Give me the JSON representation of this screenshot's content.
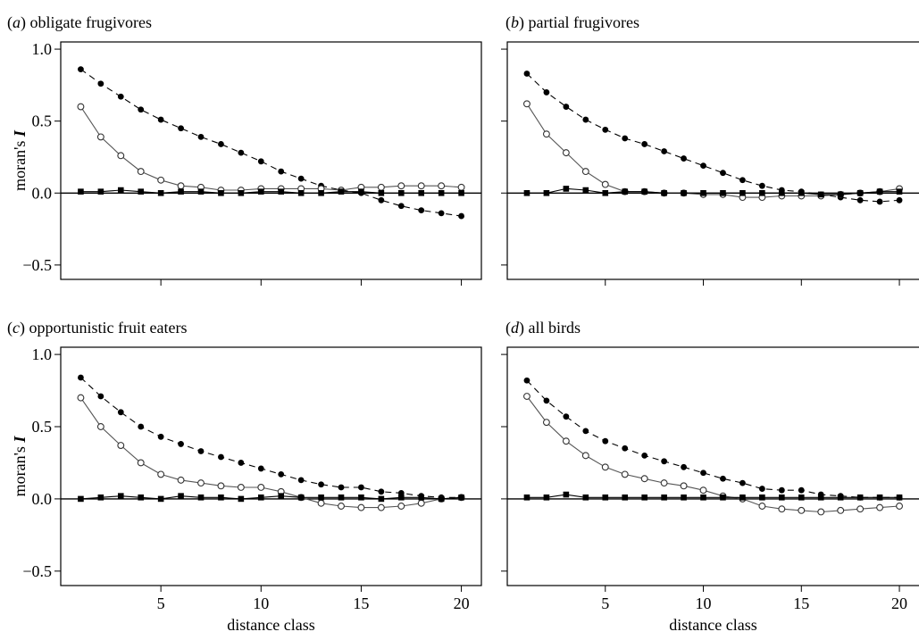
{
  "chart_data": [
    {
      "type": "line",
      "panel_letter": "a",
      "title": "obligate frugivores",
      "xlabel": "",
      "ylabel": "moran's I",
      "xlim": [
        0,
        21
      ],
      "ylim": [
        -0.6,
        1.05
      ],
      "xticks": [
        5,
        10,
        15,
        20
      ],
      "yticks": [
        -0.5,
        0.0,
        0.5,
        1.0
      ],
      "show_x_tick_labels": false,
      "show_y_tick_labels": true,
      "x": [
        1,
        2,
        3,
        4,
        5,
        6,
        7,
        8,
        9,
        10,
        11,
        12,
        13,
        14,
        15,
        16,
        17,
        18,
        19,
        20
      ],
      "series": [
        {
          "style": "dashed-filled-circle",
          "values": [
            0.86,
            0.76,
            0.67,
            0.58,
            0.51,
            0.45,
            0.39,
            0.34,
            0.28,
            0.22,
            0.15,
            0.1,
            0.05,
            0.02,
            0.0,
            -0.05,
            -0.09,
            -0.12,
            -0.14,
            -0.16
          ]
        },
        {
          "style": "solid-open-circle",
          "values": [
            0.6,
            0.39,
            0.26,
            0.15,
            0.09,
            0.05,
            0.04,
            0.02,
            0.02,
            0.03,
            0.03,
            0.03,
            0.03,
            0.02,
            0.04,
            0.04,
            0.05,
            0.05,
            0.05,
            0.04
          ]
        },
        {
          "style": "solid-filled-square",
          "values": [
            0.01,
            0.01,
            0.02,
            0.01,
            0.0,
            0.01,
            0.01,
            0.0,
            0.0,
            0.01,
            0.01,
            0.0,
            0.0,
            0.01,
            0.01,
            0.0,
            0.0,
            0.0,
            0.0,
            0.0
          ]
        }
      ]
    },
    {
      "type": "line",
      "panel_letter": "b",
      "title": "partial frugivores",
      "xlabel": "",
      "ylabel": "",
      "xlim": [
        0,
        21
      ],
      "ylim": [
        -0.6,
        1.05
      ],
      "xticks": [
        5,
        10,
        15,
        20
      ],
      "yticks": [
        -0.5,
        0.0,
        0.5,
        1.0
      ],
      "show_x_tick_labels": false,
      "show_y_tick_labels": false,
      "x": [
        1,
        2,
        3,
        4,
        5,
        6,
        7,
        8,
        9,
        10,
        11,
        12,
        13,
        14,
        15,
        16,
        17,
        18,
        19,
        20
      ],
      "series": [
        {
          "style": "dashed-filled-circle",
          "values": [
            0.83,
            0.7,
            0.6,
            0.51,
            0.44,
            0.38,
            0.34,
            0.29,
            0.24,
            0.19,
            0.14,
            0.09,
            0.05,
            0.02,
            0.01,
            -0.01,
            -0.03,
            -0.05,
            -0.06,
            -0.05
          ]
        },
        {
          "style": "solid-open-circle",
          "values": [
            0.62,
            0.41,
            0.28,
            0.15,
            0.06,
            0.01,
            0.01,
            0.0,
            0.0,
            -0.01,
            -0.01,
            -0.03,
            -0.03,
            -0.02,
            -0.02,
            -0.02,
            -0.01,
            0.0,
            0.01,
            0.03
          ]
        },
        {
          "style": "solid-filled-square",
          "values": [
            0.0,
            0.0,
            0.03,
            0.02,
            0.0,
            0.01,
            0.01,
            0.0,
            0.0,
            0.0,
            0.0,
            0.0,
            0.0,
            0.0,
            0.0,
            -0.01,
            -0.01,
            0.0,
            0.01,
            0.01
          ]
        }
      ]
    },
    {
      "type": "line",
      "panel_letter": "c",
      "title": "opportunistic fruit eaters",
      "xlabel": "distance class",
      "ylabel": "moran's I",
      "xlim": [
        0,
        21
      ],
      "ylim": [
        -0.6,
        1.05
      ],
      "xticks": [
        5,
        10,
        15,
        20
      ],
      "yticks": [
        -0.5,
        0.0,
        0.5,
        1.0
      ],
      "show_x_tick_labels": true,
      "show_y_tick_labels": true,
      "x": [
        1,
        2,
        3,
        4,
        5,
        6,
        7,
        8,
        9,
        10,
        11,
        12,
        13,
        14,
        15,
        16,
        17,
        18,
        19,
        20
      ],
      "series": [
        {
          "style": "dashed-filled-circle",
          "values": [
            0.84,
            0.71,
            0.6,
            0.5,
            0.43,
            0.38,
            0.33,
            0.29,
            0.25,
            0.21,
            0.17,
            0.13,
            0.1,
            0.08,
            0.08,
            0.05,
            0.04,
            0.02,
            0.01,
            0.01
          ]
        },
        {
          "style": "solid-open-circle",
          "values": [
            0.7,
            0.5,
            0.37,
            0.25,
            0.17,
            0.13,
            0.11,
            0.09,
            0.08,
            0.08,
            0.05,
            0.01,
            -0.03,
            -0.05,
            -0.06,
            -0.06,
            -0.05,
            -0.03,
            0.0,
            0.01
          ]
        },
        {
          "style": "solid-filled-square",
          "values": [
            0.0,
            0.01,
            0.02,
            0.01,
            0.0,
            0.02,
            0.01,
            0.01,
            0.0,
            0.01,
            0.02,
            0.01,
            0.01,
            0.01,
            0.01,
            0.0,
            0.01,
            0.01,
            0.0,
            0.01
          ]
        }
      ]
    },
    {
      "type": "line",
      "panel_letter": "d",
      "title": "all birds",
      "xlabel": "distance class",
      "ylabel": "",
      "xlim": [
        0,
        21
      ],
      "ylim": [
        -0.6,
        1.05
      ],
      "xticks": [
        5,
        10,
        15,
        20
      ],
      "yticks": [
        -0.5,
        0.0,
        0.5,
        1.0
      ],
      "show_x_tick_labels": true,
      "show_y_tick_labels": false,
      "x": [
        1,
        2,
        3,
        4,
        5,
        6,
        7,
        8,
        9,
        10,
        11,
        12,
        13,
        14,
        15,
        16,
        17,
        18,
        19,
        20
      ],
      "series": [
        {
          "style": "dashed-filled-circle",
          "values": [
            0.82,
            0.68,
            0.57,
            0.47,
            0.4,
            0.35,
            0.3,
            0.26,
            0.22,
            0.18,
            0.14,
            0.11,
            0.07,
            0.06,
            0.06,
            0.03,
            0.02,
            0.01,
            0.01,
            0.01
          ]
        },
        {
          "style": "solid-open-circle",
          "values": [
            0.71,
            0.53,
            0.4,
            0.3,
            0.22,
            0.17,
            0.14,
            0.11,
            0.09,
            0.06,
            0.02,
            0.0,
            -0.05,
            -0.07,
            -0.08,
            -0.09,
            -0.08,
            -0.07,
            -0.06,
            -0.05
          ]
        },
        {
          "style": "solid-filled-square",
          "values": [
            0.01,
            0.01,
            0.03,
            0.01,
            0.01,
            0.01,
            0.01,
            0.01,
            0.01,
            0.01,
            0.01,
            0.01,
            0.01,
            0.01,
            0.01,
            0.01,
            0.01,
            0.01,
            0.01,
            0.01
          ]
        }
      ]
    }
  ]
}
